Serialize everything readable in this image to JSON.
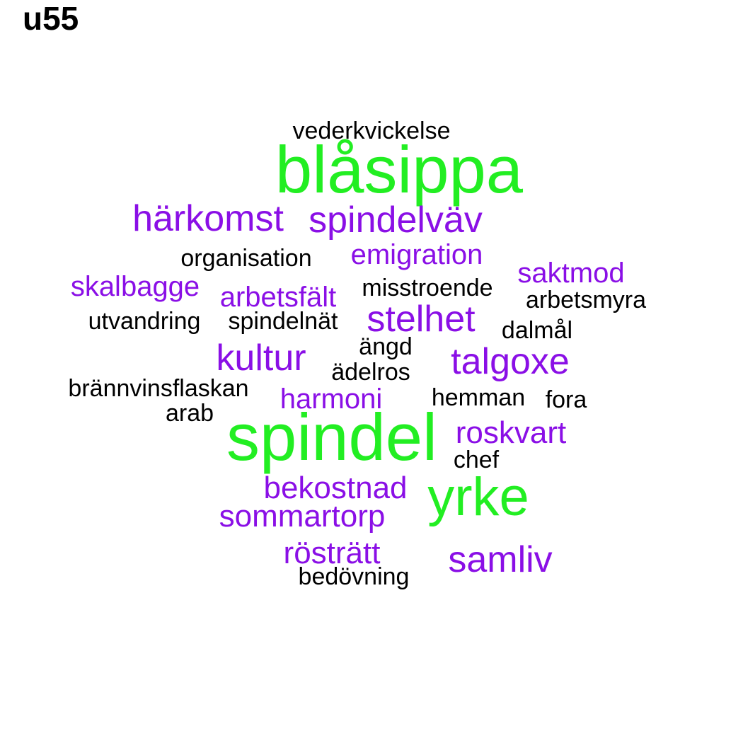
{
  "title": "u55",
  "colors": {
    "large": "#22ee22",
    "medium": "#8a0fe6",
    "small": "#000000"
  },
  "words": [
    {
      "text": "vederkvickelse",
      "tier": "small"
    },
    {
      "text": "blåsippa",
      "tier": "large"
    },
    {
      "text": "härkomst",
      "tier": "medium"
    },
    {
      "text": "spindelväv",
      "tier": "medium"
    },
    {
      "text": "organisation",
      "tier": "small"
    },
    {
      "text": "emigration",
      "tier": "medium"
    },
    {
      "text": "saktmod",
      "tier": "medium"
    },
    {
      "text": "skalbagge",
      "tier": "medium"
    },
    {
      "text": "arbetsfält",
      "tier": "medium"
    },
    {
      "text": "misstroende",
      "tier": "small"
    },
    {
      "text": "arbetsmyra",
      "tier": "small"
    },
    {
      "text": "utvandring",
      "tier": "small"
    },
    {
      "text": "spindelnät",
      "tier": "small"
    },
    {
      "text": "stelhet",
      "tier": "medium"
    },
    {
      "text": "dalmål",
      "tier": "small"
    },
    {
      "text": "ängd",
      "tier": "small"
    },
    {
      "text": "kultur",
      "tier": "medium"
    },
    {
      "text": "talgoxe",
      "tier": "medium"
    },
    {
      "text": "ädelros",
      "tier": "small"
    },
    {
      "text": "brännvinsflaskan",
      "tier": "small"
    },
    {
      "text": "harmoni",
      "tier": "medium"
    },
    {
      "text": "hemman",
      "tier": "small"
    },
    {
      "text": "fora",
      "tier": "small"
    },
    {
      "text": "arab",
      "tier": "small"
    },
    {
      "text": "spindel",
      "tier": "large"
    },
    {
      "text": "roskvart",
      "tier": "medium"
    },
    {
      "text": "chef",
      "tier": "small"
    },
    {
      "text": "bekostnad",
      "tier": "medium"
    },
    {
      "text": "yrke",
      "tier": "large"
    },
    {
      "text": "sommartorp",
      "tier": "medium"
    },
    {
      "text": "rösträtt",
      "tier": "medium"
    },
    {
      "text": "samliv",
      "tier": "medium"
    },
    {
      "text": "bedövning",
      "tier": "small"
    }
  ]
}
